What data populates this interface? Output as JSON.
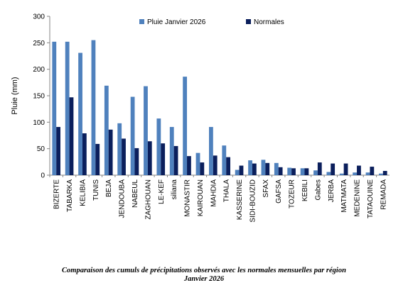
{
  "chart_data": {
    "type": "bar",
    "ylabel": "Pluie (mm)",
    "xlabel": "",
    "ylim": [
      0,
      300
    ],
    "yticks": [
      0,
      50,
      100,
      150,
      200,
      250,
      300
    ],
    "grid": false,
    "legend_position": "top-center",
    "categories": [
      "BIZERTE",
      "TABARKA",
      "KELIBIA",
      "TUNIS",
      "BEJA",
      "JENDOUBA",
      "NABEUL",
      "ZAGHOUAN",
      "LE-KEF",
      "siliana",
      "MONASTIR",
      "KAIROUAN",
      "MAHDIA",
      "THALA",
      "KASSERINE",
      "SIDI-BOUZID",
      "SFAX",
      "GAFSA",
      "TOZEUR",
      "KEBILI",
      "Gabes",
      "JERBA",
      "MATMATA",
      "MEDENINE",
      "TATAOUINE",
      "REMADA"
    ],
    "series": [
      {
        "name": "Pluie Janvier 2026",
        "color": "#4f81bd",
        "values": [
          252,
          252,
          231,
          255,
          169,
          98,
          148,
          168,
          107,
          91,
          186,
          42,
          91,
          56,
          10,
          28,
          29,
          23,
          14,
          13,
          9,
          6,
          3,
          5,
          5,
          3
        ]
      },
      {
        "name": "Normales",
        "color": "#0b1f5c",
        "values": [
          91,
          147,
          79,
          59,
          86,
          69,
          51,
          64,
          60,
          55,
          36,
          24,
          37,
          34,
          18,
          22,
          23,
          15,
          13,
          13,
          24,
          22,
          22,
          18,
          16,
          8
        ]
      }
    ]
  },
  "caption": {
    "line1": "Comparaison des cumuls de précipitations observés avec les normales mensuelles par région",
    "line2": "Janvier 2026"
  }
}
